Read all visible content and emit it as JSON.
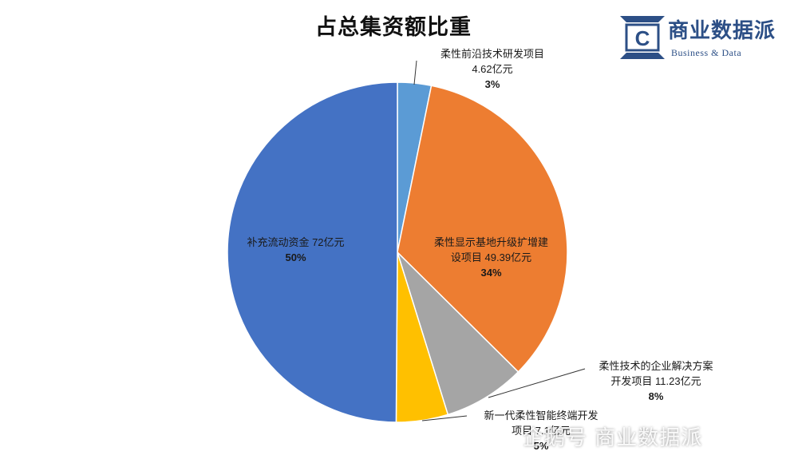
{
  "chart_data": {
    "type": "pie",
    "title": "占总集资额比重",
    "unit": "亿元",
    "slices": [
      {
        "name": "柔性前沿技术研发项目",
        "value": 4.62,
        "value_text": "4.62亿元",
        "percent": "3%",
        "color": "#5b9bd5"
      },
      {
        "name": "柔性显示基地升级扩增建设项目",
        "value": 49.39,
        "value_text": "49.39亿元",
        "percent": "34%",
        "color": "#ed7d31"
      },
      {
        "name": "柔性技术的企业解决方案开发项目",
        "value": 11.23,
        "value_text": "11.23亿元",
        "percent": "8%",
        "color": "#a5a5a5"
      },
      {
        "name": "新一代柔性智能终端开发项目",
        "value": 7.1,
        "value_text": "7.1亿元",
        "percent": "5%",
        "color": "#ffc000"
      },
      {
        "name": "补充流动资金",
        "value": 72,
        "value_text": "72亿元",
        "percent": "50%",
        "color": "#4472c4"
      }
    ]
  },
  "logo": {
    "letter": "C",
    "cn": "商业数据派",
    "en": "Business & Data",
    "color": "#2c4f86"
  },
  "watermark": {
    "text": "企鹅号 商业数据派"
  },
  "labels": {
    "s0": {
      "line1": "柔性前沿技术研发项目",
      "line2": "4.62亿元",
      "pct": "3%"
    },
    "s1": {
      "line1": "柔性显示基地升级扩增建",
      "line2": "设项目 49.39亿元",
      "pct": "34%"
    },
    "s2": {
      "line1": "柔性技术的企业解决方案",
      "line2": "开发项目 11.23亿元",
      "pct": "8%"
    },
    "s3": {
      "line1": "新一代柔性智能终端开发",
      "line2": "项目 7.1亿元",
      "pct": "5%"
    },
    "s4": {
      "line1": "补充流动资金 72亿元",
      "pct": "50%"
    }
  }
}
